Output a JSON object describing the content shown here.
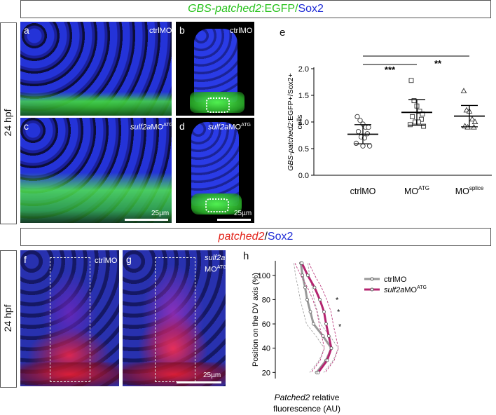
{
  "top_title": {
    "italic": "GBS-patched2",
    "rest": ":EGFP/",
    "sox": "Sox2"
  },
  "top_side_label": "24 hpf",
  "panels_top": [
    {
      "letter": "a",
      "label": "ctrlMO"
    },
    {
      "letter": "b",
      "label": "ctrlMO"
    },
    {
      "letter": "c",
      "label_italic": "sulf2a",
      "label_rest": "MO",
      "label_sup": "ATG"
    },
    {
      "letter": "d",
      "label_italic": "sulf2a",
      "label_rest": "MO",
      "label_sup": "ATG"
    }
  ],
  "scale_c": "25µm",
  "scale_d": "25µm",
  "panel_e_letter": "e",
  "bottom_title": {
    "italic": "patched2",
    "slash": "/",
    "sox": "Sox2"
  },
  "bottom_side_label": "24 hpf",
  "panels_bottom": [
    {
      "letter": "f",
      "label": "ctrlMO"
    },
    {
      "letter": "g",
      "label_italic": "sulf2a",
      "label_rest": "MO",
      "label_sup": "ATG"
    }
  ],
  "scale_g": "25µm",
  "panel_h_letter": "h",
  "colors": {
    "green": "#27c21c",
    "blue": "#1e2bd6",
    "red": "#e2231a",
    "magenta": "#b4246f",
    "grey": "#999999"
  },
  "chart_data": [
    {
      "type": "scatter",
      "ylabel_italic": "GBS-patched2",
      "ylabel_rest": ":EGFP+/Sox2+",
      "ylabel_line2": "cells",
      "ylim": [
        0.0,
        2.0
      ],
      "yticks": [
        "0.0",
        "0.5",
        "1.0",
        "1.5",
        "2.0"
      ],
      "categories": [
        {
          "label": "ctrlMO"
        },
        {
          "label": "MO",
          "sup": "ATG"
        },
        {
          "label": "MO",
          "sup": "splice"
        }
      ],
      "series": [
        {
          "marker": "circle",
          "mean": 0.77,
          "sd": 0.18,
          "values": [
            1.1,
            1.03,
            0.96,
            0.9,
            0.9,
            0.82,
            0.78,
            0.72,
            0.7,
            0.6,
            0.55,
            0.55
          ]
        },
        {
          "marker": "square",
          "mean": 1.18,
          "sd": 0.24,
          "values": [
            1.78,
            1.4,
            1.3,
            1.2,
            1.15,
            1.1,
            1.05,
            1.0,
            1.0,
            0.95,
            0.92
          ]
        },
        {
          "marker": "triangle",
          "mean": 1.11,
          "sd": 0.2,
          "values": [
            1.58,
            1.22,
            1.2,
            1.05,
            1.0,
            0.92,
            0.9,
            0.9
          ]
        }
      ],
      "significance": [
        {
          "from": 0,
          "to": 1,
          "label": "***"
        },
        {
          "from": 0,
          "to": 2,
          "label": "**"
        }
      ]
    },
    {
      "type": "line",
      "xlabel_italic": "Patched2",
      "xlabel_rest": " relative",
      "xlabel_line2": "fluorescence (AU)",
      "ylabel": "Position on the DV axis (%)",
      "ylim": [
        15,
        112
      ],
      "yticks": [
        "20",
        "40",
        "60",
        "80",
        "100"
      ],
      "stars": "*",
      "series": [
        {
          "name": "ctrlMO",
          "color": "#999999",
          "y": [
            110,
            100,
            90,
            80,
            70,
            60,
            50,
            40,
            30,
            20
          ],
          "x": [
            0.02,
            0.05,
            0.1,
            0.14,
            0.2,
            0.26,
            0.44,
            0.6,
            0.5,
            0.32
          ]
        },
        {
          "name_italic": "sulf2a",
          "name_rest": "MO",
          "name_sup": "ATG",
          "color": "#b4246f",
          "y": [
            110,
            100,
            90,
            80,
            70,
            60,
            50,
            40,
            30,
            20
          ],
          "x": [
            0.04,
            0.15,
            0.28,
            0.38,
            0.46,
            0.5,
            0.55,
            0.6,
            0.52,
            0.35
          ]
        }
      ]
    }
  ]
}
